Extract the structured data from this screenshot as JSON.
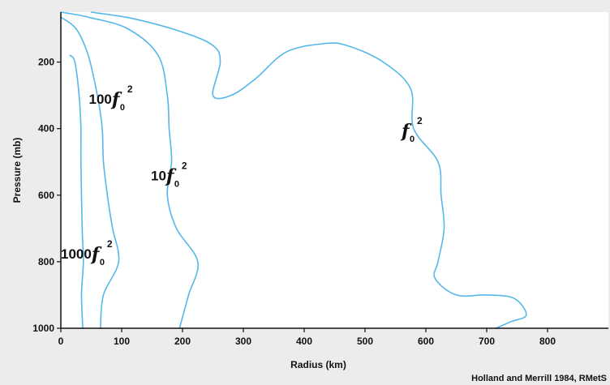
{
  "chart_data": {
    "type": "line",
    "title": "",
    "xlabel": "Radius (km)",
    "ylabel": "Pressure (mb)",
    "xlim": [
      0,
      900
    ],
    "ylim": [
      1000,
      50
    ],
    "y_inverted": true,
    "xticks": [
      "0",
      "100",
      "200",
      "300",
      "400",
      "500",
      "600",
      "700",
      "800"
    ],
    "yticks": [
      "200",
      "400",
      "600",
      "800",
      "1000"
    ],
    "grid": false,
    "credit": "Holland and Merrill 1984, RMetS",
    "line_color": "#55b8ea",
    "series": [
      {
        "label": {
          "coef": "1000",
          "f": "f",
          "sub": "0",
          "sup": "2"
        },
        "label_at": [
          0,
          790
        ],
        "points": [
          [
            15,
            180
          ],
          [
            23,
            200
          ],
          [
            30,
            300
          ],
          [
            33,
            400
          ],
          [
            33,
            500
          ],
          [
            35,
            700
          ],
          [
            37,
            800
          ],
          [
            34,
            900
          ],
          [
            36,
            1000
          ]
        ]
      },
      {
        "label": {
          "coef": "100",
          "f": "f",
          "sub": "0",
          "sup": "2"
        },
        "label_at": [
          46,
          325
        ],
        "points": [
          [
            0,
            65
          ],
          [
            25,
            100
          ],
          [
            45,
            180
          ],
          [
            60,
            300
          ],
          [
            68,
            400
          ],
          [
            70,
            500
          ],
          [
            78,
            620
          ],
          [
            85,
            700
          ],
          [
            95,
            800
          ],
          [
            70,
            900
          ],
          [
            65,
            1000
          ]
        ]
      },
      {
        "label": {
          "coef": "10",
          "f": "f",
          "sub": "0",
          "sup": "2"
        },
        "label_at": [
          148,
          555
        ],
        "points": [
          [
            0,
            50
          ],
          [
            45,
            65
          ],
          [
            110,
            100
          ],
          [
            160,
            180
          ],
          [
            175,
            300
          ],
          [
            178,
            400
          ],
          [
            182,
            500
          ],
          [
            175,
            600
          ],
          [
            190,
            700
          ],
          [
            225,
            800
          ],
          [
            210,
            900
          ],
          [
            195,
            1000
          ]
        ]
      },
      {
        "label": {
          "coef": "",
          "f": "f",
          "sub": "0",
          "sup": "2"
        },
        "label_at": [
          560,
          420
        ],
        "points": [
          [
            50,
            50
          ],
          [
            120,
            70
          ],
          [
            200,
            110
          ],
          [
            250,
            150
          ],
          [
            262,
            200
          ],
          [
            250,
            300
          ],
          [
            280,
            300
          ],
          [
            320,
            250
          ],
          [
            370,
            170
          ],
          [
            430,
            145
          ],
          [
            470,
            150
          ],
          [
            530,
            200
          ],
          [
            575,
            280
          ],
          [
            580,
            400
          ],
          [
            620,
            500
          ],
          [
            625,
            600
          ],
          [
            630,
            700
          ],
          [
            620,
            800
          ],
          [
            615,
            850
          ],
          [
            650,
            900
          ],
          [
            700,
            900
          ],
          [
            745,
            910
          ],
          [
            765,
            960
          ],
          [
            740,
            980
          ],
          [
            715,
            1000
          ]
        ]
      }
    ]
  }
}
